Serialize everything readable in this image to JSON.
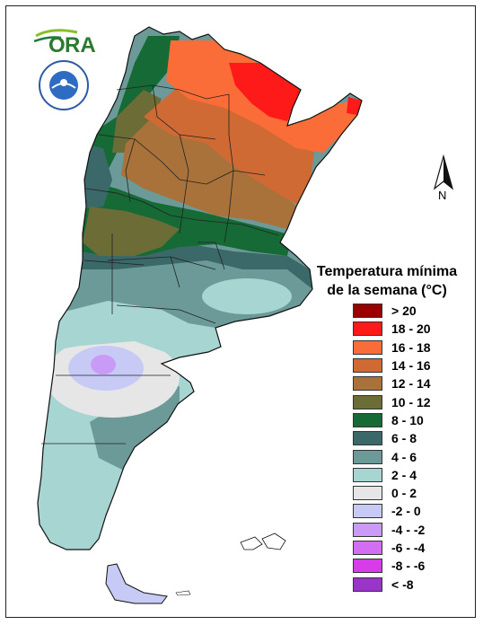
{
  "logo": {
    "text": "ORA",
    "seal_text": "SERVICIO METEOROLOGICO NACIONAL ARGENTINA"
  },
  "north_arrow": {
    "label": "N"
  },
  "legend": {
    "title_line1": "Temperatura mínima",
    "title_line2": "de la semana (°C)",
    "items": [
      {
        "label": "> 20",
        "color": "#9b0000"
      },
      {
        "label": "18 - 20",
        "color": "#ff1a1a"
      },
      {
        "label": "16 - 18",
        "color": "#fb6d38"
      },
      {
        "label": "14 - 16",
        "color": "#cf6a35"
      },
      {
        "label": "12 - 14",
        "color": "#a8723a"
      },
      {
        "label": "10 - 12",
        "color": "#6b6c36"
      },
      {
        "label": "8 - 10",
        "color": "#156a35"
      },
      {
        "label": "6 - 8",
        "color": "#3b6868"
      },
      {
        "label": "4 - 6",
        "color": "#6b9a98"
      },
      {
        "label": "2 - 4",
        "color": "#a6d5d2"
      },
      {
        "label": "0 - 2",
        "color": "#e6e6e6"
      },
      {
        "label": "-2 - 0",
        "color": "#c8caf6"
      },
      {
        "label": "-4 - -2",
        "color": "#c99af6"
      },
      {
        "label": "-6 - -4",
        "color": "#d36df2"
      },
      {
        "label": "-8 - -6",
        "color": "#d63de8"
      },
      {
        "label": "< -8",
        "color": "#9a35c9"
      }
    ]
  }
}
